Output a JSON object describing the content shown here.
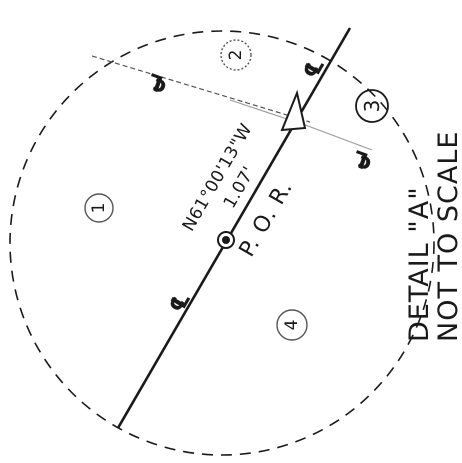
{
  "detail": {
    "title": "DETAIL \"A\"",
    "note": "NOT TO SCALE"
  },
  "alignment": {
    "bearing": "N61°00'13\"W",
    "distance": "1.07'",
    "point_label": "P. O. R.",
    "centerline_symbol": "℄"
  },
  "markers": [
    {
      "id": "marker-1",
      "label": "1"
    },
    {
      "id": "marker-2",
      "label": "2"
    },
    {
      "id": "marker-3",
      "label": "3"
    },
    {
      "id": "marker-4",
      "label": "4"
    }
  ],
  "colors": {
    "ink": "#1a1a1a",
    "faint_line": "#8a8a8a",
    "background": "#ffffff"
  }
}
